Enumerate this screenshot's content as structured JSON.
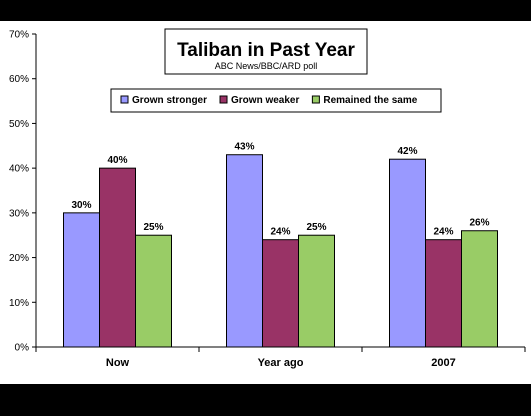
{
  "chart_data": {
    "type": "bar",
    "title": "Taliban in Past Year",
    "subtitle": "ABC News/BBC/ARD poll",
    "categories": [
      "Now",
      "Year ago",
      "2007"
    ],
    "series": [
      {
        "name": "Grown stronger",
        "color": "#9999FF",
        "values": [
          30,
          43,
          42
        ],
        "labels": [
          "30%",
          "43%",
          "42%"
        ]
      },
      {
        "name": "Grown weaker",
        "color": "#993366",
        "values": [
          40,
          24,
          24
        ],
        "labels": [
          "40%",
          "24%",
          "24%"
        ]
      },
      {
        "name": "Remained the same",
        "color": "#99CC66",
        "values": [
          25,
          25,
          26
        ],
        "labels": [
          "25%",
          "25%",
          "26%"
        ]
      }
    ],
    "ylim": [
      0,
      70
    ],
    "yticks": [
      0,
      10,
      20,
      30,
      40,
      50,
      60,
      70
    ],
    "ytick_labels": [
      "0%",
      "10%",
      "20%",
      "30%",
      "40%",
      "50%",
      "60%",
      "70%"
    ],
    "grid": false,
    "legend_position": "top"
  }
}
